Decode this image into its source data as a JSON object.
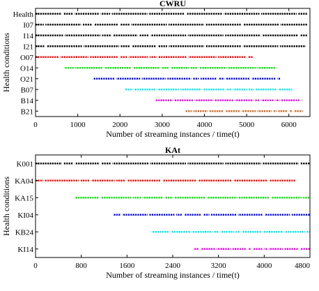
{
  "chart_data": [
    {
      "type": "scatter",
      "title": "CWRU",
      "xlabel": "Number of streaming instances / time(t)",
      "ylabel": "Health conditions",
      "xlim": [
        0,
        6500
      ],
      "xticks": [
        "0",
        "1000",
        "2000",
        "3000",
        "4000",
        "5000",
        "6000"
      ],
      "grid": false,
      "series": [
        {
          "name": "Health",
          "color": "#000000",
          "x_range": [
            0,
            6450
          ]
        },
        {
          "name": "I07",
          "color": "#000000",
          "x_range": [
            0,
            6450
          ]
        },
        {
          "name": "I14",
          "color": "#000000",
          "x_range": [
            0,
            6450
          ]
        },
        {
          "name": "I21",
          "color": "#000000",
          "x_range": [
            0,
            6400
          ]
        },
        {
          "name": "O07",
          "color": "#ff0000",
          "x_range": [
            0,
            5150
          ]
        },
        {
          "name": "O14",
          "color": "#00e000",
          "x_range": [
            700,
            5700
          ]
        },
        {
          "name": "O21",
          "color": "#0000ff",
          "x_range": [
            1380,
            5800
          ]
        },
        {
          "name": "B07",
          "color": "#00e8e8",
          "x_range": [
            2130,
            6080
          ]
        },
        {
          "name": "B14",
          "color": "#e600e6",
          "x_range": [
            2850,
            6330
          ]
        },
        {
          "name": "B21",
          "color": "#c86420",
          "x_range": [
            3560,
            6330
          ]
        }
      ]
    },
    {
      "type": "scatter",
      "title": "KAt",
      "xlabel": "Number of streaming instances / time(t)",
      "ylabel": "Health conditions",
      "xlim": [
        0,
        4800
      ],
      "xticks": [
        "0",
        "800",
        "1600",
        "2400",
        "3200",
        "4000",
        "4800"
      ],
      "grid": false,
      "series": [
        {
          "name": "K001",
          "color": "#000000",
          "x_range": [
            0,
            4800
          ]
        },
        {
          "name": "KA04",
          "color": "#ff0000",
          "x_range": [
            0,
            4550
          ]
        },
        {
          "name": "KA15",
          "color": "#00e000",
          "x_range": [
            700,
            4800
          ]
        },
        {
          "name": "KI04",
          "color": "#0000ff",
          "x_range": [
            1370,
            4800
          ]
        },
        {
          "name": "KB24",
          "color": "#00e8e8",
          "x_range": [
            2050,
            4800
          ]
        },
        {
          "name": "KI14",
          "color": "#e600e6",
          "x_range": [
            2780,
            4800
          ]
        }
      ]
    }
  ]
}
